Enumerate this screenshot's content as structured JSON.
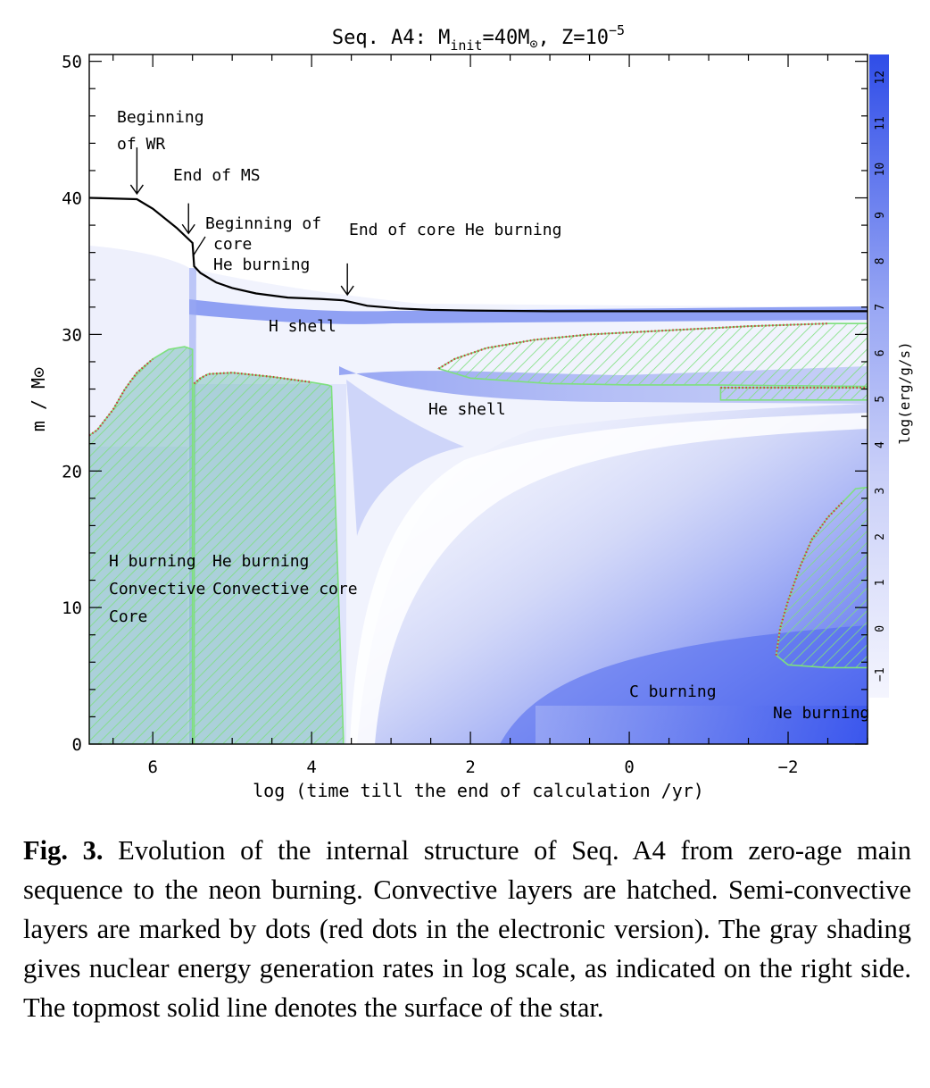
{
  "chart_data": {
    "type": "area",
    "title": {
      "prefix": "Seq. A4: M",
      "sub": "init",
      "mid": "=40M",
      "sun": "⊙",
      "tail": ", Z=10",
      "sup": "−5"
    },
    "xlabel": "log (time till the end of calculation /yr)",
    "ylabel": "m / M⊙",
    "colorbar_label": "log(erg/g/s)",
    "xlim": [
      6.8,
      -3.0
    ],
    "ylim": [
      0,
      50.5
    ],
    "xticks": [
      6,
      4,
      2,
      0,
      -2
    ],
    "xtick_labels": [
      "6",
      "4",
      "2",
      "0",
      "−2"
    ],
    "yticks": [
      0,
      10,
      20,
      30,
      40,
      50
    ],
    "ytick_labels": [
      "0",
      "10",
      "20",
      "30",
      "40",
      "50"
    ],
    "colorbar_range": [
      -1.5,
      12.5
    ],
    "colorbar_ticks": [
      -1,
      0,
      1,
      2,
      3,
      4,
      5,
      6,
      7,
      8,
      9,
      10,
      11,
      12
    ],
    "colorbar_tick_labels": [
      "−1",
      "0",
      "1",
      "2",
      "3",
      "4",
      "5",
      "6",
      "7",
      "8",
      "9",
      "10",
      "11",
      "12"
    ],
    "colors": {
      "energy_light": "#eef0fc",
      "energy_dark": "#3a55ee",
      "convective_fill": "#7fbfc0",
      "hatch": "#7ee07e",
      "semiconvective": "#d03a3a"
    },
    "surface": {
      "x": [
        6.8,
        6.2,
        6.0,
        5.7,
        5.5,
        5.48,
        5.4,
        5.2,
        5.0,
        4.7,
        4.3,
        3.9,
        3.6,
        3.3,
        2.9,
        2.5,
        2.0,
        1.0,
        0.0,
        -1.0,
        -2.0,
        -3.0
      ],
      "y": [
        40.0,
        39.9,
        39.2,
        37.8,
        36.7,
        35.0,
        34.5,
        33.8,
        33.4,
        33.0,
        32.7,
        32.6,
        32.5,
        32.1,
        31.9,
        31.8,
        31.75,
        31.7,
        31.7,
        31.7,
        31.7,
        31.7
      ]
    },
    "regions": [
      {
        "label_lines": [
          "H burning",
          "Convective",
          "Core"
        ],
        "x": [
          6.8,
          6.7,
          6.5,
          6.35,
          6.2,
          6.0,
          5.8,
          5.6,
          5.5,
          5.5,
          6.8
        ],
        "y": [
          22.6,
          23.0,
          24.5,
          26.0,
          27.2,
          28.2,
          28.9,
          29.1,
          28.9,
          0,
          0
        ]
      },
      {
        "label_lines": [
          "He burning",
          "Convective core"
        ],
        "x": [
          5.48,
          5.4,
          5.3,
          5.0,
          4.5,
          4.0,
          3.8,
          3.75,
          3.6,
          3.6,
          5.48
        ],
        "y": [
          26.4,
          26.8,
          27.1,
          27.2,
          26.9,
          26.5,
          26.3,
          26.2,
          0.5,
          0,
          0
        ]
      },
      {
        "label_lines": [],
        "x": [
          2.4,
          2.2,
          1.8,
          1.2,
          0.5,
          -0.5,
          -1.5,
          -2.5,
          -3.0,
          -3.0,
          -1.0,
          0.0,
          1.0,
          2.0,
          2.4
        ],
        "y": [
          27.5,
          28.2,
          29.0,
          29.6,
          30.0,
          30.3,
          30.6,
          30.8,
          30.8,
          26.2,
          26.3,
          26.3,
          26.4,
          26.8,
          27.5
        ]
      },
      {
        "label_lines": [],
        "x": [
          -1.15,
          -3.0,
          -3.0,
          -1.15
        ],
        "y": [
          26.1,
          26.1,
          25.2,
          25.2
        ]
      },
      {
        "label_lines": [],
        "x": [
          -1.85,
          -1.9,
          -2.0,
          -2.15,
          -2.3,
          -2.5,
          -2.7,
          -2.85,
          -3.0,
          -3.0,
          -2.5,
          -2.0,
          -1.85
        ],
        "y": [
          6.5,
          8.5,
          10.5,
          13.0,
          15.0,
          16.6,
          17.8,
          18.7,
          18.8,
          5.6,
          5.6,
          5.8,
          6.5
        ]
      }
    ],
    "annotations": [
      {
        "lines": [
          "Beginning",
          "of WR"
        ],
        "x": 6.2,
        "arrow_from": 43.7,
        "arrow_to": 40.3
      },
      {
        "lines": [
          "End of MS"
        ],
        "x": 5.55,
        "arrow_from": 39.6,
        "arrow_to": 37.4
      },
      {
        "lines": [
          "Beginning of",
          "core",
          "He burning"
        ],
        "x": 5.48,
        "arrow_from": 0,
        "arrow_to": 0
      },
      {
        "lines": [
          "End of core He burning"
        ],
        "x": 3.55,
        "arrow_from": 35.2,
        "arrow_to": 32.9
      }
    ],
    "zone_labels": [
      "H shell",
      "He shell",
      "C burning",
      "Ne burning"
    ]
  },
  "caption": {
    "label": "Fig. 3.",
    "text": "Evolution of the internal structure of Seq. A4 from zero-age main sequence to the neon burning. Convective layers are hatched. Semi-convective layers are marked by dots (red dots in the electronic version). The gray shading gives nuclear energy generation rates in log scale, as indicated on the right side. The topmost solid line denotes the surface of the star."
  }
}
